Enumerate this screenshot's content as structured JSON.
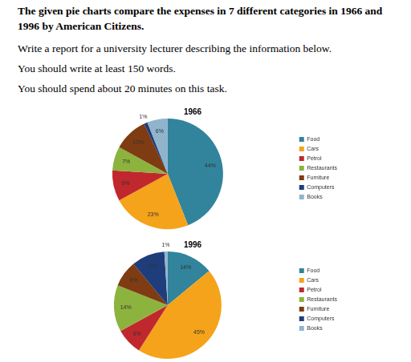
{
  "header": {
    "title": "The given pie charts compare the expenses in 7 different categories in 1966 and 1996 by American Citizens.",
    "lines": [
      "Write a report for a university lecturer describing the information below.",
      "You should write at least 150 words.",
      "You should spend about 20 minutes on this task."
    ]
  },
  "chart_data": [
    {
      "type": "pie",
      "title": "1966",
      "categories": [
        "Food",
        "Cars",
        "Petrol",
        "Restaurants",
        "Furniture",
        "Computers",
        "Books"
      ],
      "values": [
        44,
        23,
        9,
        7,
        10,
        1,
        6
      ],
      "value_labels": [
        "44%",
        "23%",
        "9%",
        "7%",
        "10%",
        "1%",
        "6%"
      ],
      "colors": [
        "#31849b",
        "#f5a31a",
        "#c0282d",
        "#8db33f",
        "#7f3b12",
        "#1f3d7a",
        "#8fb4cc"
      ],
      "legend": "right",
      "data_labels": true
    },
    {
      "type": "pie",
      "title": "1996",
      "categories": [
        "Food",
        "Cars",
        "Petrol",
        "Restaurants",
        "Furniture",
        "Computers",
        "Books"
      ],
      "values": [
        14,
        45,
        8,
        14,
        8,
        10,
        1
      ],
      "value_labels": [
        "14%",
        "45%",
        "8%",
        "14%",
        "8%",
        "10%",
        "1%"
      ],
      "colors": [
        "#31849b",
        "#f5a31a",
        "#c0282d",
        "#8db33f",
        "#7f3b12",
        "#1f3d7a",
        "#8fb4cc"
      ],
      "legend": "right",
      "data_labels": true
    }
  ]
}
